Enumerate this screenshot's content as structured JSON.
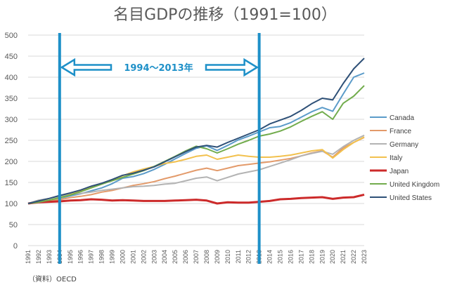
{
  "chart_data": {
    "type": "line",
    "title": "名目GDPの推移（1991=100）",
    "source_note": "（資料）OECD",
    "period_label": "1994～2013年",
    "period": [
      1994,
      2013
    ],
    "ylim": [
      0,
      500
    ],
    "yticks": [
      0,
      50,
      100,
      150,
      200,
      250,
      300,
      350,
      400,
      450,
      500
    ],
    "grid": true,
    "legend_position": "right",
    "x": [
      1991,
      1992,
      1993,
      1994,
      1995,
      1996,
      1997,
      1998,
      1999,
      2000,
      2001,
      2002,
      2003,
      2004,
      2005,
      2006,
      2007,
      2008,
      2009,
      2010,
      2011,
      2012,
      2013,
      2014,
      2015,
      2016,
      2017,
      2018,
      2019,
      2020,
      2021,
      2022,
      2023
    ],
    "series": [
      {
        "name": "Canada",
        "color": "#5b9bc9",
        "values": [
          100,
          103,
          107,
          112,
          118,
          123,
          130,
          137,
          147,
          160,
          164,
          171,
          181,
          193,
          206,
          219,
          231,
          237,
          226,
          238,
          251,
          260,
          270,
          280,
          283,
          292,
          305,
          318,
          328,
          319,
          360,
          400,
          410
        ]
      },
      {
        "name": "France",
        "color": "#e39a6a",
        "values": [
          100,
          104,
          105,
          109,
          114,
          117,
          121,
          127,
          131,
          137,
          143,
          147,
          152,
          159,
          165,
          172,
          179,
          184,
          178,
          184,
          190,
          193,
          196,
          199,
          203,
          207,
          213,
          220,
          225,
          210,
          232,
          245,
          257
        ]
      },
      {
        "name": "Germany",
        "color": "#b3b3b3",
        "values": [
          100,
          108,
          112,
          117,
          122,
          124,
          127,
          131,
          134,
          137,
          140,
          141,
          143,
          146,
          148,
          154,
          160,
          163,
          154,
          162,
          170,
          175,
          180,
          188,
          196,
          204,
          213,
          219,
          224,
          217,
          235,
          250,
          262
        ]
      },
      {
        "name": "Italy",
        "color": "#f2c14e",
        "values": [
          100,
          106,
          108,
          113,
          121,
          130,
          138,
          146,
          156,
          166,
          175,
          182,
          188,
          195,
          199,
          205,
          212,
          215,
          205,
          210,
          215,
          212,
          210,
          210,
          212,
          215,
          220,
          225,
          228,
          208,
          228,
          245,
          258
        ]
      },
      {
        "name": "Japan",
        "color": "#cc2a2a",
        "values": [
          100,
          103,
          104,
          105,
          107,
          108,
          110,
          109,
          107,
          108,
          107,
          106,
          106,
          106,
          107,
          108,
          109,
          107,
          100,
          103,
          102,
          102,
          104,
          106,
          110,
          111,
          113,
          114,
          115,
          111,
          114,
          115,
          121
        ]
      },
      {
        "name": "United Kingdom",
        "color": "#72ac4d",
        "values": [
          100,
          103,
          108,
          114,
          120,
          128,
          137,
          146,
          154,
          162,
          170,
          178,
          188,
          200,
          212,
          225,
          236,
          230,
          220,
          230,
          241,
          250,
          260,
          265,
          272,
          282,
          295,
          307,
          318,
          300,
          338,
          355,
          380
        ]
      },
      {
        "name": "United States",
        "color": "#2e5077",
        "values": [
          100,
          106,
          112,
          119,
          125,
          132,
          141,
          148,
          157,
          167,
          172,
          179,
          187,
          199,
          211,
          223,
          234,
          238,
          234,
          245,
          255,
          265,
          275,
          289,
          298,
          307,
          321,
          337,
          350,
          346,
          385,
          420,
          445
        ]
      }
    ]
  }
}
